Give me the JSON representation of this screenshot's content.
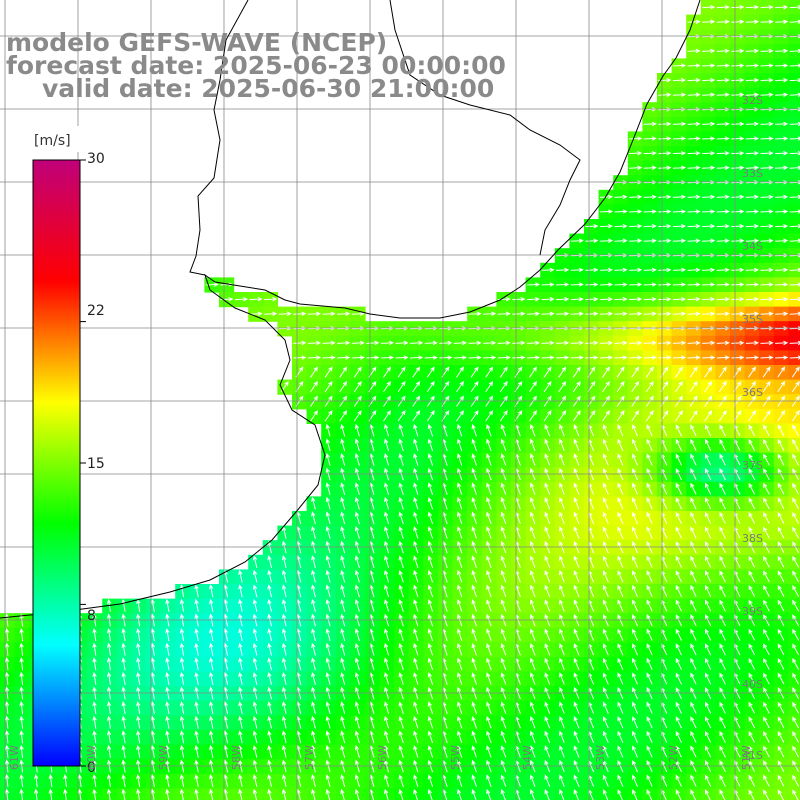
{
  "title": {
    "line1": "modelo GEFS-WAVE (NCEP)",
    "line2": "forecast date: 2025-06-23 00:00:00",
    "line3": "valid date: 2025-06-30 21:00:00"
  },
  "colorbar": {
    "unit": "[m/s]",
    "ticks": [
      "30",
      "22",
      "15",
      "8",
      "0"
    ],
    "tick_values": [
      30,
      22,
      15,
      8,
      0
    ],
    "range": [
      0,
      30
    ],
    "colors": [
      "#0000ff",
      "#00ffff",
      "#00ff00",
      "#ffff00",
      "#ff0000",
      "#c0007a"
    ]
  },
  "map": {
    "variable": "wind speed and direction",
    "units": "m/s",
    "lat_labels": [
      "32S",
      "33S",
      "34S",
      "35S",
      "36S",
      "37S",
      "38S",
      "39S",
      "40S",
      "41S"
    ],
    "lon_labels": [
      "61W",
      "60W",
      "59W",
      "58W",
      "57W",
      "56W",
      "55W",
      "54W",
      "53W",
      "52W",
      "51W"
    ],
    "land_color": "#ffffff",
    "coast_color": "#000000",
    "grid_color": "#888888",
    "arrow_color": "#ffffff"
  }
}
